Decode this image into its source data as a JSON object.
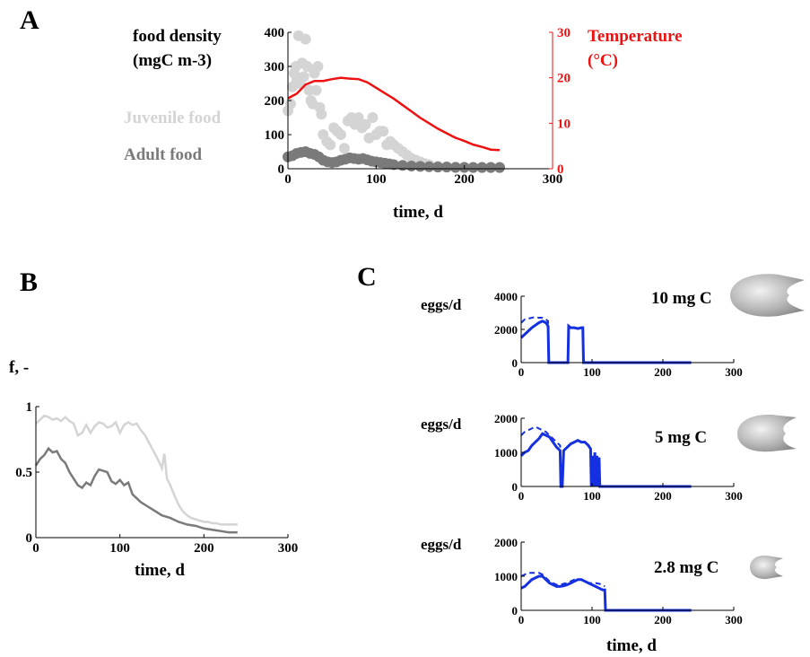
{
  "panels": {
    "a": {
      "letter": "A"
    },
    "b": {
      "letter": "B"
    },
    "c": {
      "letter": "C"
    }
  },
  "colors": {
    "temperature": "#ee1111",
    "juvenile": "#d4d4d4",
    "adult": "#7a7a7a",
    "eggs": "#1530e0",
    "axis": "#000000"
  },
  "chart_data": [
    {
      "id": "A",
      "type": "scatter",
      "ylabel_lines": [
        "food density",
        "(mgC m-3)"
      ],
      "y2label_lines": [
        "Temperature",
        "(°C)"
      ],
      "xlabel": "time, d",
      "xlim": [
        0,
        300
      ],
      "ylim": [
        0,
        400
      ],
      "y2lim": [
        0,
        30
      ],
      "xticks": [
        0,
        100,
        200,
        300
      ],
      "yticks": [
        0,
        100,
        200,
        300,
        400
      ],
      "y2ticks": [
        0,
        10,
        20,
        30
      ],
      "legend": [
        "Juvenile food",
        "Adult food"
      ],
      "series": [
        {
          "name": "Juvenile food",
          "kind": "scatter",
          "x": [
            0,
            3,
            5,
            7,
            9,
            10,
            12,
            14,
            16,
            18,
            20,
            22,
            24,
            26,
            28,
            30,
            32,
            34,
            36,
            38,
            40,
            44,
            48,
            52,
            56,
            60,
            64,
            68,
            72,
            76,
            80,
            84,
            88,
            92,
            96,
            100,
            104,
            108,
            112,
            116,
            120,
            125,
            130,
            135,
            140,
            145,
            150,
            155,
            160,
            170,
            180,
            190,
            200,
            210,
            220,
            230,
            240
          ],
          "y": [
            170,
            190,
            240,
            280,
            300,
            260,
            390,
            250,
            310,
            270,
            380,
            300,
            230,
            200,
            190,
            280,
            230,
            300,
            180,
            160,
            100,
            80,
            70,
            120,
            110,
            100,
            60,
            140,
            150,
            130,
            150,
            120,
            130,
            90,
            150,
            100,
            110,
            110,
            70,
            80,
            70,
            60,
            50,
            40,
            30,
            25,
            20,
            15,
            12,
            8,
            6,
            5,
            4,
            3,
            3,
            3,
            3
          ]
        },
        {
          "name": "Adult food",
          "kind": "scatter",
          "x": [
            0,
            5,
            10,
            15,
            20,
            25,
            30,
            35,
            40,
            45,
            50,
            55,
            60,
            65,
            70,
            75,
            80,
            85,
            90,
            95,
            100,
            105,
            110,
            115,
            120,
            130,
            140,
            150,
            160,
            170,
            180,
            190,
            200,
            210,
            220,
            230,
            240
          ],
          "y": [
            35,
            38,
            45,
            48,
            50,
            45,
            42,
            35,
            25,
            20,
            18,
            20,
            25,
            28,
            32,
            30,
            28,
            30,
            26,
            22,
            20,
            18,
            16,
            14,
            12,
            10,
            8,
            7,
            6,
            5,
            5,
            4,
            4,
            4,
            4,
            4,
            4
          ]
        },
        {
          "name": "Temperature",
          "kind": "line",
          "axis": "right",
          "x": [
            0,
            10,
            20,
            30,
            40,
            50,
            60,
            70,
            80,
            90,
            100,
            110,
            120,
            130,
            140,
            150,
            160,
            170,
            180,
            190,
            200,
            210,
            220,
            230,
            240
          ],
          "y": [
            15.5,
            16.5,
            18.5,
            19.3,
            19.3,
            19.7,
            20.0,
            19.8,
            19.7,
            19.0,
            17.8,
            16.6,
            15.4,
            14.0,
            12.6,
            11.2,
            10.0,
            8.8,
            7.8,
            6.8,
            6.1,
            5.3,
            4.8,
            4.2,
            4.1
          ]
        }
      ]
    },
    {
      "id": "B",
      "type": "line",
      "ylabel": "f, -",
      "xlabel": "time, d",
      "xlim": [
        0,
        300
      ],
      "ylim": [
        0,
        1
      ],
      "xticks": [
        0,
        100,
        200,
        300
      ],
      "yticks": [
        0,
        0.5,
        1
      ],
      "series": [
        {
          "kind": "light",
          "x": [
            0,
            5,
            10,
            15,
            20,
            25,
            30,
            35,
            40,
            45,
            50,
            55,
            60,
            65,
            70,
            75,
            80,
            85,
            90,
            95,
            100,
            105,
            110,
            115,
            120,
            125,
            130,
            135,
            140,
            145,
            150,
            153,
            156,
            160,
            165,
            170,
            175,
            180,
            185,
            190,
            195,
            200,
            205,
            210,
            215,
            220,
            225,
            230,
            235,
            240
          ],
          "y": [
            0.87,
            0.9,
            0.93,
            0.92,
            0.9,
            0.91,
            0.89,
            0.92,
            0.89,
            0.87,
            0.78,
            0.8,
            0.86,
            0.8,
            0.85,
            0.88,
            0.87,
            0.84,
            0.85,
            0.88,
            0.8,
            0.86,
            0.88,
            0.86,
            0.87,
            0.82,
            0.78,
            0.72,
            0.66,
            0.6,
            0.53,
            0.64,
            0.45,
            0.4,
            0.32,
            0.25,
            0.2,
            0.17,
            0.15,
            0.14,
            0.13,
            0.12,
            0.12,
            0.11,
            0.11,
            0.1,
            0.1,
            0.1,
            0.1,
            0.1
          ]
        },
        {
          "kind": "dark",
          "x": [
            0,
            5,
            10,
            15,
            20,
            25,
            30,
            35,
            40,
            45,
            50,
            55,
            60,
            65,
            70,
            75,
            80,
            85,
            90,
            95,
            100,
            105,
            110,
            115,
            120,
            125,
            130,
            140,
            150,
            160,
            170,
            180,
            190,
            200,
            210,
            220,
            230,
            240
          ],
          "y": [
            0.55,
            0.6,
            0.63,
            0.68,
            0.65,
            0.66,
            0.6,
            0.57,
            0.5,
            0.45,
            0.4,
            0.38,
            0.42,
            0.4,
            0.47,
            0.52,
            0.51,
            0.5,
            0.43,
            0.41,
            0.44,
            0.4,
            0.42,
            0.33,
            0.3,
            0.27,
            0.25,
            0.21,
            0.17,
            0.15,
            0.12,
            0.1,
            0.09,
            0.07,
            0.06,
            0.05,
            0.04,
            0.04
          ]
        }
      ]
    },
    {
      "id": "C1",
      "type": "line",
      "ylabel": "eggs/d",
      "annotation": "10 mg C",
      "xlim": [
        0,
        300
      ],
      "ylim": [
        0,
        4000
      ],
      "xticks": [
        0,
        100,
        200,
        300
      ],
      "yticks": [
        0,
        2000,
        4000
      ],
      "series": [
        {
          "kind": "solid",
          "x": [
            0,
            5,
            10,
            15,
            20,
            25,
            30,
            35,
            38,
            39,
            40,
            55,
            66,
            67,
            70,
            75,
            80,
            85,
            87,
            88,
            90,
            100,
            150,
            200,
            240
          ],
          "y": [
            1500,
            1700,
            1900,
            2100,
            2250,
            2400,
            2500,
            2400,
            2200,
            0,
            0,
            0,
            0,
            2200,
            2100,
            2100,
            2050,
            2100,
            2100,
            0,
            0,
            0,
            0,
            0,
            0
          ]
        },
        {
          "kind": "dashed",
          "x": [
            0,
            5,
            10,
            15,
            20,
            25,
            30,
            35,
            38,
            39
          ],
          "y": [
            2400,
            2600,
            2650,
            2700,
            2750,
            2700,
            2700,
            2600,
            2500,
            0
          ]
        }
      ]
    },
    {
      "id": "C2",
      "type": "line",
      "ylabel": "eggs/d",
      "annotation": "5 mg C",
      "xlim": [
        0,
        300
      ],
      "ylim": [
        0,
        2000
      ],
      "xticks": [
        0,
        100,
        200,
        300
      ],
      "yticks": [
        0,
        1000,
        2000
      ],
      "series": [
        {
          "kind": "solid",
          "x": [
            0,
            5,
            10,
            15,
            20,
            25,
            30,
            35,
            40,
            45,
            50,
            55,
            56,
            58,
            60,
            65,
            70,
            75,
            80,
            85,
            90,
            95,
            98,
            99,
            101,
            102,
            104,
            105,
            107,
            108,
            110,
            111,
            113,
            150,
            200,
            240
          ],
          "y": [
            900,
            1000,
            1050,
            1200,
            1300,
            1400,
            1550,
            1500,
            1450,
            1300,
            1150,
            1050,
            0,
            0,
            1050,
            1150,
            1250,
            1300,
            1350,
            1300,
            1300,
            1200,
            1100,
            0,
            900,
            0,
            1000,
            0,
            900,
            0,
            850,
            0,
            0,
            0,
            0,
            0
          ]
        },
        {
          "kind": "dashed",
          "x": [
            0,
            5,
            10,
            15,
            20,
            25,
            30,
            35,
            40,
            45,
            50,
            55,
            56
          ],
          "y": [
            1500,
            1600,
            1650,
            1700,
            1750,
            1700,
            1650,
            1600,
            1500,
            1400,
            1300,
            1200,
            0
          ]
        }
      ]
    },
    {
      "id": "C3",
      "type": "line",
      "ylabel": "eggs/d",
      "annotation": "2.8 mg C",
      "xlabel": "time, d",
      "xlim": [
        0,
        300
      ],
      "ylim": [
        0,
        2000
      ],
      "xticks": [
        0,
        100,
        200,
        300
      ],
      "yticks": [
        0,
        1000,
        2000
      ],
      "series": [
        {
          "kind": "solid",
          "x": [
            0,
            5,
            10,
            15,
            20,
            25,
            30,
            35,
            40,
            45,
            50,
            55,
            60,
            65,
            70,
            75,
            80,
            85,
            90,
            95,
            100,
            105,
            110,
            115,
            118,
            119,
            150,
            200,
            240
          ],
          "y": [
            650,
            700,
            800,
            900,
            950,
            1000,
            1000,
            900,
            800,
            750,
            700,
            700,
            720,
            750,
            800,
            850,
            900,
            900,
            850,
            800,
            750,
            700,
            650,
            600,
            600,
            0,
            0,
            0,
            0
          ]
        },
        {
          "kind": "dashed",
          "x": [
            0,
            5,
            10,
            15,
            20,
            25,
            30,
            35,
            40,
            45,
            50,
            55,
            60,
            65,
            70,
            75,
            80,
            85,
            90,
            95,
            100,
            105,
            110,
            115,
            118
          ],
          "y": [
            1000,
            1050,
            1100,
            1100,
            1100,
            1100,
            1050,
            950,
            850,
            800,
            750,
            750,
            780,
            800,
            850,
            900,
            900,
            900,
            850,
            800,
            800,
            800,
            780,
            750,
            700
          ]
        }
      ]
    }
  ]
}
